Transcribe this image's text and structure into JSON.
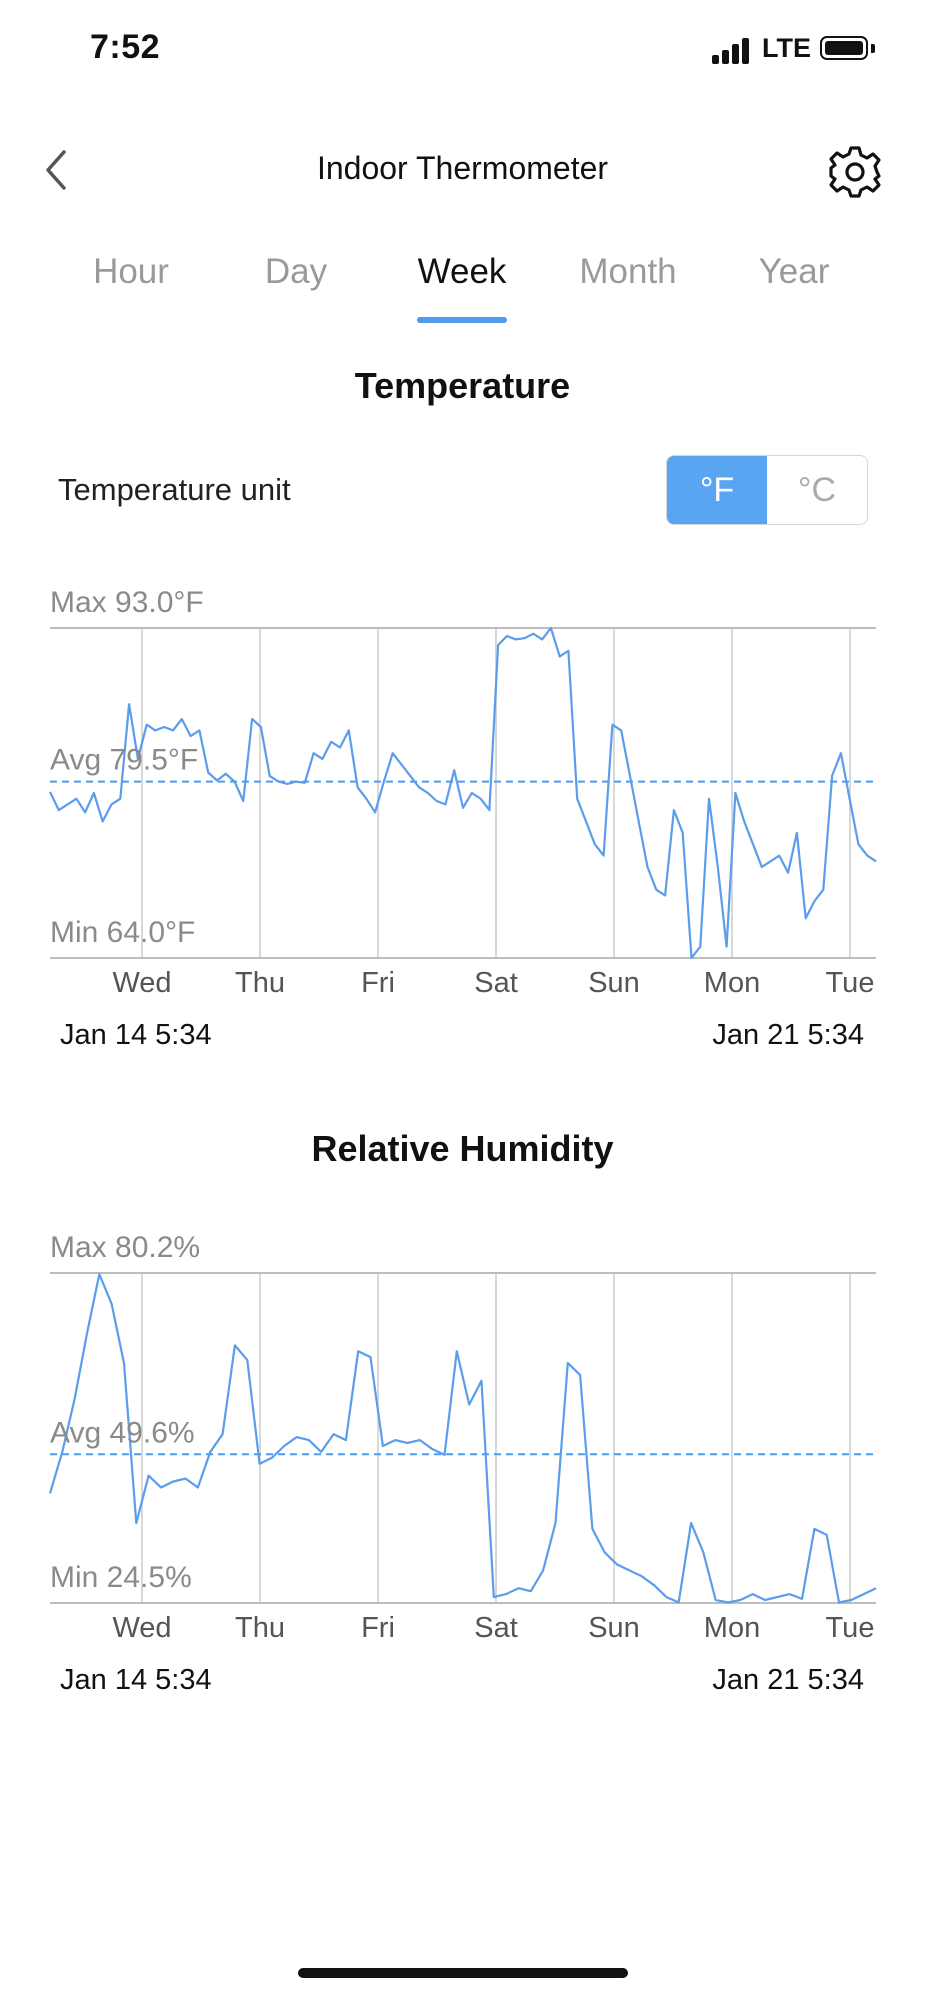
{
  "status_bar": {
    "time": "7:52",
    "network": "LTE"
  },
  "header": {
    "title": "Indoor Thermometer"
  },
  "tabs": [
    {
      "label": "Hour",
      "active": false
    },
    {
      "label": "Day",
      "active": false
    },
    {
      "label": "Week",
      "active": true
    },
    {
      "label": "Month",
      "active": false
    },
    {
      "label": "Year",
      "active": false
    }
  ],
  "colors": {
    "accent": "#5aa5f2",
    "line": "#5b9cec",
    "grid": "#d8d8d8"
  },
  "temperature": {
    "section_title": "Temperature",
    "unit_label": "Temperature unit",
    "unit_options": {
      "f": "°F",
      "c": "°C",
      "selected": "°F"
    },
    "start_label": "Jan 14  5:34",
    "end_label": "Jan 21  5:34"
  },
  "humidity": {
    "section_title": "Relative Humidity",
    "start_label": "Jan 14  5:34",
    "end_label": "Jan 21  5:34"
  },
  "chart_data": [
    {
      "type": "line",
      "series": [
        {
          "values": [
            78.6,
            77.0,
            77.5,
            78.0,
            76.8,
            78.5,
            76.0,
            77.5,
            78.0,
            86.3,
            81.5,
            84.5,
            84.0,
            84.3,
            84.0,
            85.0,
            83.5,
            84.0,
            80.3,
            79.6,
            80.2,
            79.5,
            77.8,
            85.0,
            84.3,
            80.0,
            79.5,
            79.3,
            79.5,
            79.4,
            82.0,
            81.5,
            83.0,
            82.5,
            84.0,
            79.0,
            78.0,
            76.8,
            79.5,
            82.0,
            81.0,
            80.0,
            79.0,
            78.5,
            77.8,
            77.5,
            80.5,
            77.2,
            78.5,
            78.0,
            77.0,
            91.5,
            92.3,
            92.0,
            92.1,
            92.5,
            92.0,
            93.0,
            90.5,
            91.0,
            78.0,
            76.0,
            74.0,
            73.0,
            84.5,
            84.0,
            80.0,
            76.0,
            72.0,
            70.0,
            69.5,
            77.0,
            75.0,
            64.0,
            65.0,
            78.0,
            72.0,
            65.0,
            78.5,
            76.0,
            74.0,
            72.0,
            72.5,
            73.0,
            71.5,
            75.0,
            67.5,
            69.0,
            70.0,
            80.0,
            82.0,
            78.0,
            74.0,
            73.0,
            72.5
          ]
        }
      ],
      "x_ticks": [
        "Wed",
        "Thu",
        "Fri",
        "Sat",
        "Sun",
        "Mon",
        "Tue"
      ],
      "max_label": "Max 93.0°F",
      "avg_label": "Avg 79.5°F",
      "min_label": "Min 64.0°F",
      "max": 93.0,
      "avg": 79.5,
      "min": 64.0,
      "ylim": [
        64.0,
        93.0
      ]
    },
    {
      "type": "line",
      "series": [
        {
          "values": [
            43.0,
            50.0,
            59.0,
            70.0,
            80.0,
            75.0,
            65.0,
            38.0,
            46.0,
            44.0,
            45.0,
            45.5,
            44.0,
            50.0,
            53.0,
            68.0,
            65.5,
            48.0,
            49.0,
            51.0,
            52.5,
            52.0,
            50.0,
            53.0,
            52.0,
            67.0,
            66.0,
            51.0,
            52.0,
            51.5,
            52.0,
            50.5,
            49.5,
            67.0,
            58.0,
            62.0,
            25.5,
            26.0,
            27.0,
            26.5,
            30.0,
            38.0,
            65.0,
            63.0,
            37.0,
            33.0,
            31.0,
            30.0,
            29.0,
            27.5,
            25.5,
            24.6,
            38.0,
            33.0,
            25.0,
            24.6,
            25.0,
            26.0,
            25.0,
            25.5,
            26.0,
            25.2,
            37.0,
            36.0,
            24.6,
            25.0,
            26.0,
            27.0
          ]
        }
      ],
      "x_ticks": [
        "Wed",
        "Thu",
        "Fri",
        "Sat",
        "Sun",
        "Mon",
        "Tue"
      ],
      "max_label": "Max 80.2%",
      "avg_label": "Avg 49.6%",
      "min_label": "Min 24.5%",
      "max": 80.2,
      "avg": 49.6,
      "min": 24.5,
      "ylim": [
        24.5,
        80.2
      ]
    }
  ]
}
